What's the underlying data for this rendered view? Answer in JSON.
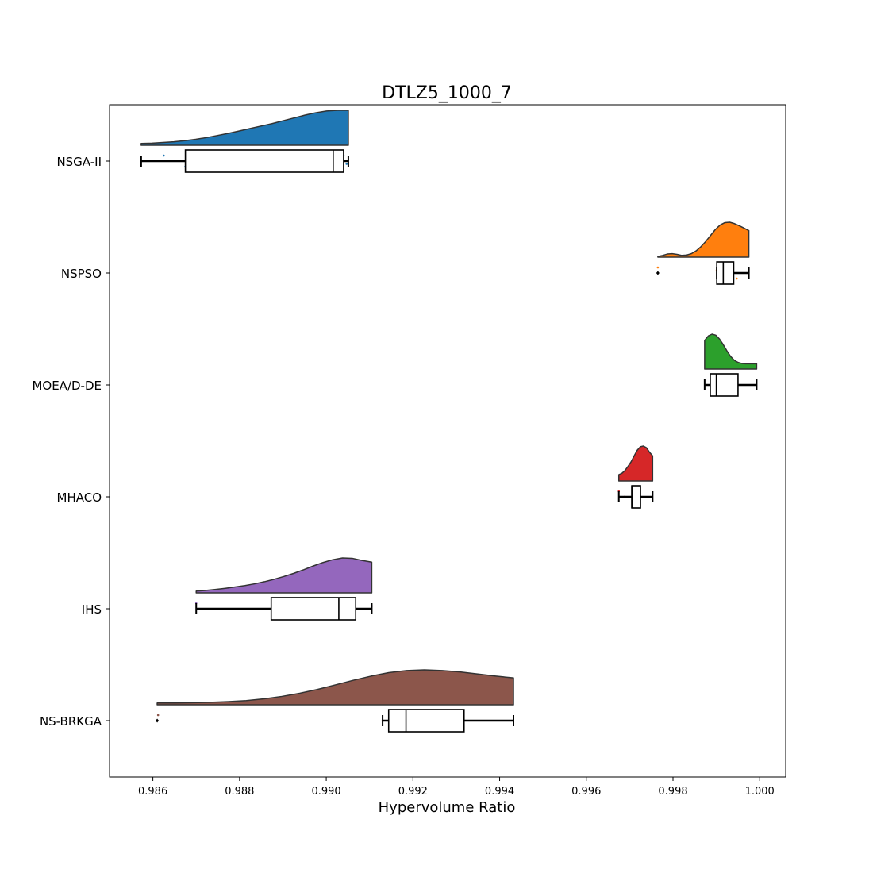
{
  "chart_data": {
    "type": "raincloud",
    "title": "DTLZ5_1000_7",
    "xlabel": "Hypervolume Ratio",
    "ylabel": "",
    "xlim": [
      0.985,
      1.0006
    ],
    "x_ticks": [
      0.986,
      0.988,
      0.99,
      0.992,
      0.994,
      0.996,
      0.998,
      1.0
    ],
    "x_tick_labels": [
      "0.986",
      "0.988",
      "0.990",
      "0.992",
      "0.994",
      "0.996",
      "0.998",
      "1.000"
    ],
    "grid": false,
    "legend": "none",
    "categories": [
      "NSGA-II",
      "NSPSO",
      "MOEA/D-DE",
      "MHACO",
      "IHS",
      "NS-BRKGA"
    ],
    "series": [
      {
        "name": "NSGA-II",
        "color": "#1f77b4",
        "box": {
          "whisker_low": 0.98573,
          "q1": 0.98675,
          "median": 0.99016,
          "q3": 0.9904,
          "whisker_high": 0.99051
        },
        "outliers": [],
        "points": [
          0.98625,
          0.98718,
          0.98675,
          0.99031,
          0.99047,
          0.9904
        ],
        "density": [
          0.05,
          0.06,
          0.08,
          0.1,
          0.13,
          0.17,
          0.22,
          0.28,
          0.34,
          0.41,
          0.48,
          0.55,
          0.62,
          0.7,
          0.78,
          0.86,
          0.93,
          0.98,
          1.0,
          1.0
        ]
      },
      {
        "name": "NSPSO",
        "color": "#ff7f0e",
        "box": {
          "whisker_low": 0.99901,
          "q1": 0.99901,
          "median": 0.99916,
          "q3": 0.9994,
          "whisker_high": 0.99975
        },
        "outliers": [
          0.99765
        ],
        "points": [
          0.99765,
          0.99932,
          0.99947,
          0.99901,
          0.9992
        ],
        "density": [
          0.02,
          0.05,
          0.09,
          0.1,
          0.08,
          0.05,
          0.06,
          0.1,
          0.18,
          0.3,
          0.45,
          0.62,
          0.79,
          0.92,
          0.99,
          1.0,
          0.96,
          0.9,
          0.83,
          0.76
        ]
      },
      {
        "name": "MOEA/D-DE",
        "color": "#2ca02c",
        "box": {
          "whisker_low": 0.99873,
          "q1": 0.99886,
          "median": 0.999,
          "q3": 0.9995,
          "whisker_high": 0.99993
        },
        "outliers": [],
        "points": [
          0.9991,
          0.99897,
          0.9989
        ],
        "density": [
          0.82,
          0.95,
          1.0,
          0.97,
          0.86,
          0.7,
          0.52,
          0.36,
          0.25,
          0.19,
          0.16,
          0.15,
          0.15,
          0.15,
          0.15
        ]
      },
      {
        "name": "MHACO",
        "color": "#d62728",
        "box": {
          "whisker_low": 0.99675,
          "q1": 0.99705,
          "median": 0.99705,
          "q3": 0.99725,
          "whisker_high": 0.99753
        },
        "outliers": [],
        "points": [
          0.99675,
          0.99688
        ],
        "density": [
          0.18,
          0.22,
          0.3,
          0.42,
          0.55,
          0.72,
          0.88,
          0.98,
          1.0,
          0.95,
          0.82,
          0.72
        ]
      },
      {
        "name": "IHS",
        "color": "#9467bd",
        "box": {
          "whisker_low": 0.987,
          "q1": 0.98873,
          "median": 0.99029,
          "q3": 0.99068,
          "whisker_high": 0.99105
        },
        "outliers": [],
        "points": [
          0.987,
          0.98887,
          0.99031,
          0.99105
        ],
        "density": [
          0.05,
          0.07,
          0.1,
          0.13,
          0.17,
          0.21,
          0.26,
          0.32,
          0.39,
          0.47,
          0.56,
          0.66,
          0.77,
          0.87,
          0.95,
          1.0,
          0.99,
          0.93,
          0.88
        ]
      },
      {
        "name": "NS-BRKGA",
        "color": "#8c564b",
        "box": {
          "whisker_low": 0.9913,
          "q1": 0.99144,
          "median": 0.99184,
          "q3": 0.99318,
          "whisker_high": 0.99432
        },
        "outliers": [
          0.9861
        ],
        "points": [
          0.98612,
          0.9913,
          0.9915,
          0.99268
        ],
        "density": [
          0.05,
          0.05,
          0.06,
          0.07,
          0.09,
          0.12,
          0.17,
          0.24,
          0.33,
          0.44,
          0.57,
          0.7,
          0.82,
          0.92,
          0.98,
          1.0,
          0.98,
          0.94,
          0.88,
          0.82,
          0.77
        ]
      }
    ]
  }
}
